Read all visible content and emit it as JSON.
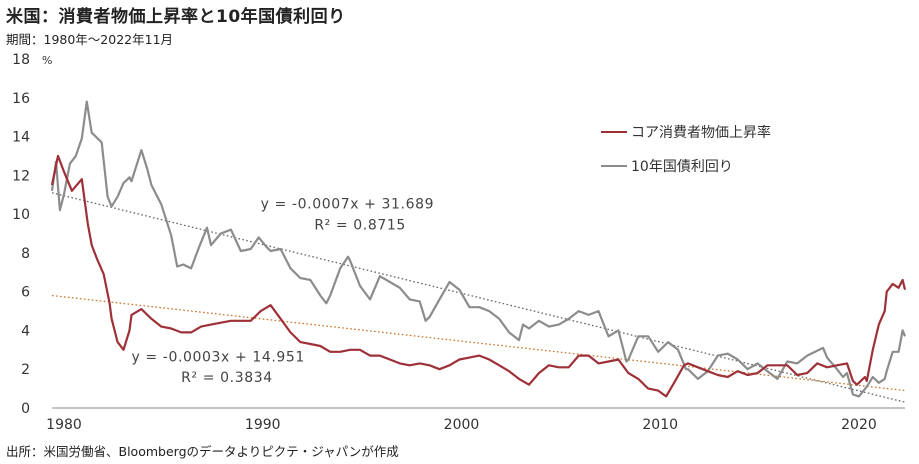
{
  "title": "米国：消費者物価上昇率と10年国債利回り",
  "period_label": "期間：1980年～2022年11月",
  "source_label": "出所：米国労働省、Bloombergのデータよりピクテ・ジャパンが作成",
  "colors": {
    "cpi": "#9e3038",
    "yield": "#8c8c8c",
    "trend_yield": "#666666",
    "trend_cpi": "#c9762a"
  },
  "chart_data": {
    "type": "line",
    "title": "米国：消費者物価上昇率と10年国債利回り",
    "xlabel": "",
    "ylabel": "%",
    "xlim": [
      1980,
      2022.92
    ],
    "ylim": [
      0,
      18
    ],
    "x_ticks": [
      1980,
      1990,
      2000,
      2010,
      2020
    ],
    "y_ticks": [
      0,
      2,
      4,
      6,
      8,
      10,
      12,
      14,
      16,
      18
    ],
    "grid": false,
    "legend": "right",
    "series": [
      {
        "name": "コア消費者物価上昇率",
        "color": "#9e3038",
        "points": [
          [
            1980,
            11.5
          ],
          [
            1980.3,
            13.0
          ],
          [
            1980.6,
            12.2
          ],
          [
            1981,
            11.2
          ],
          [
            1981.5,
            11.8
          ],
          [
            1981.8,
            9.5
          ],
          [
            1982,
            8.4
          ],
          [
            1982.3,
            7.6
          ],
          [
            1982.6,
            6.9
          ],
          [
            1982.9,
            5.4
          ],
          [
            1983,
            4.6
          ],
          [
            1983.3,
            3.4
          ],
          [
            1983.6,
            3.0
          ],
          [
            1983.9,
            4.0
          ],
          [
            1984,
            4.8
          ],
          [
            1984.5,
            5.1
          ],
          [
            1985,
            4.6
          ],
          [
            1985.5,
            4.2
          ],
          [
            1986,
            4.1
          ],
          [
            1986.5,
            3.9
          ],
          [
            1987,
            3.9
          ],
          [
            1987.5,
            4.2
          ],
          [
            1988,
            4.3
          ],
          [
            1988.5,
            4.4
          ],
          [
            1989,
            4.5
          ],
          [
            1989.5,
            4.5
          ],
          [
            1990,
            4.5
          ],
          [
            1990.5,
            5.0
          ],
          [
            1991,
            5.3
          ],
          [
            1991.5,
            4.6
          ],
          [
            1992,
            3.9
          ],
          [
            1992.5,
            3.4
          ],
          [
            1993,
            3.3
          ],
          [
            1993.5,
            3.2
          ],
          [
            1994,
            2.9
          ],
          [
            1994.5,
            2.9
          ],
          [
            1995,
            3.0
          ],
          [
            1995.5,
            3.0
          ],
          [
            1996,
            2.7
          ],
          [
            1996.5,
            2.7
          ],
          [
            1997,
            2.5
          ],
          [
            1997.5,
            2.3
          ],
          [
            1998,
            2.2
          ],
          [
            1998.5,
            2.3
          ],
          [
            1999,
            2.2
          ],
          [
            1999.5,
            2.0
          ],
          [
            2000,
            2.2
          ],
          [
            2000.5,
            2.5
          ],
          [
            2001,
            2.6
          ],
          [
            2001.5,
            2.7
          ],
          [
            2002,
            2.5
          ],
          [
            2002.5,
            2.2
          ],
          [
            2003,
            1.9
          ],
          [
            2003.5,
            1.5
          ],
          [
            2004,
            1.2
          ],
          [
            2004.5,
            1.8
          ],
          [
            2005,
            2.2
          ],
          [
            2005.5,
            2.1
          ],
          [
            2006,
            2.1
          ],
          [
            2006.5,
            2.7
          ],
          [
            2007,
            2.7
          ],
          [
            2007.5,
            2.3
          ],
          [
            2008,
            2.4
          ],
          [
            2008.5,
            2.5
          ],
          [
            2009,
            1.8
          ],
          [
            2009.5,
            1.5
          ],
          [
            2010,
            1.0
          ],
          [
            2010.5,
            0.9
          ],
          [
            2010.9,
            0.6
          ],
          [
            2011.3,
            1.3
          ],
          [
            2011.8,
            2.2
          ],
          [
            2012,
            2.3
          ],
          [
            2012.5,
            2.1
          ],
          [
            2013,
            1.9
          ],
          [
            2013.5,
            1.7
          ],
          [
            2014,
            1.6
          ],
          [
            2014.5,
            1.9
          ],
          [
            2015,
            1.7
          ],
          [
            2015.5,
            1.8
          ],
          [
            2016,
            2.2
          ],
          [
            2016.5,
            2.2
          ],
          [
            2017,
            2.2
          ],
          [
            2017.5,
            1.7
          ],
          [
            2018,
            1.8
          ],
          [
            2018.5,
            2.3
          ],
          [
            2019,
            2.1
          ],
          [
            2019.5,
            2.2
          ],
          [
            2020,
            2.3
          ],
          [
            2020.3,
            1.4
          ],
          [
            2020.5,
            1.2
          ],
          [
            2020.9,
            1.6
          ],
          [
            2021,
            1.4
          ],
          [
            2021.3,
            3.0
          ],
          [
            2021.6,
            4.3
          ],
          [
            2021.9,
            5.0
          ],
          [
            2022,
            6.0
          ],
          [
            2022.3,
            6.4
          ],
          [
            2022.6,
            6.2
          ],
          [
            2022.8,
            6.6
          ],
          [
            2022.92,
            6.1
          ]
        ]
      },
      {
        "name": "10年国債利回り",
        "color": "#8c8c8c",
        "points": [
          [
            1980,
            11.2
          ],
          [
            1980.2,
            12.7
          ],
          [
            1980.4,
            10.2
          ],
          [
            1980.6,
            11.0
          ],
          [
            1980.9,
            12.6
          ],
          [
            1981.2,
            13.0
          ],
          [
            1981.5,
            13.9
          ],
          [
            1981.75,
            15.8
          ],
          [
            1982,
            14.2
          ],
          [
            1982.5,
            13.7
          ],
          [
            1982.8,
            10.9
          ],
          [
            1983,
            10.4
          ],
          [
            1983.3,
            10.9
          ],
          [
            1983.6,
            11.6
          ],
          [
            1983.9,
            11.9
          ],
          [
            1984,
            11.7
          ],
          [
            1984.5,
            13.3
          ],
          [
            1984.8,
            12.3
          ],
          [
            1985,
            11.5
          ],
          [
            1985.5,
            10.5
          ],
          [
            1986,
            8.9
          ],
          [
            1986.3,
            7.3
          ],
          [
            1986.6,
            7.4
          ],
          [
            1987,
            7.2
          ],
          [
            1987.4,
            8.3
          ],
          [
            1987.8,
            9.3
          ],
          [
            1988,
            8.4
          ],
          [
            1988.5,
            9.0
          ],
          [
            1989,
            9.2
          ],
          [
            1989.5,
            8.1
          ],
          [
            1990,
            8.2
          ],
          [
            1990.4,
            8.8
          ],
          [
            1990.8,
            8.3
          ],
          [
            1991,
            8.1
          ],
          [
            1991.5,
            8.2
          ],
          [
            1992,
            7.2
          ],
          [
            1992.5,
            6.7
          ],
          [
            1993,
            6.6
          ],
          [
            1993.5,
            5.8
          ],
          [
            1993.8,
            5.4
          ],
          [
            1994,
            5.8
          ],
          [
            1994.5,
            7.2
          ],
          [
            1994.9,
            7.8
          ],
          [
            1995,
            7.6
          ],
          [
            1995.5,
            6.3
          ],
          [
            1996,
            5.6
          ],
          [
            1996.5,
            6.8
          ],
          [
            1997,
            6.5
          ],
          [
            1997.5,
            6.2
          ],
          [
            1998,
            5.6
          ],
          [
            1998.5,
            5.5
          ],
          [
            1998.8,
            4.5
          ],
          [
            1999,
            4.7
          ],
          [
            1999.5,
            5.6
          ],
          [
            2000,
            6.5
          ],
          [
            2000.5,
            6.1
          ],
          [
            2001,
            5.2
          ],
          [
            2001.5,
            5.2
          ],
          [
            2002,
            5.0
          ],
          [
            2002.5,
            4.6
          ],
          [
            2003,
            3.9
          ],
          [
            2003.5,
            3.5
          ],
          [
            2003.7,
            4.3
          ],
          [
            2004,
            4.1
          ],
          [
            2004.5,
            4.5
          ],
          [
            2005,
            4.2
          ],
          [
            2005.5,
            4.3
          ],
          [
            2006,
            4.6
          ],
          [
            2006.5,
            5.0
          ],
          [
            2007,
            4.8
          ],
          [
            2007.5,
            5.0
          ],
          [
            2008,
            3.7
          ],
          [
            2008.5,
            4.0
          ],
          [
            2008.9,
            2.4
          ],
          [
            2009,
            2.5
          ],
          [
            2009.5,
            3.7
          ],
          [
            2010,
            3.7
          ],
          [
            2010.5,
            2.9
          ],
          [
            2011,
            3.4
          ],
          [
            2011.5,
            3.0
          ],
          [
            2011.9,
            2.0
          ],
          [
            2012,
            2.0
          ],
          [
            2012.5,
            1.5
          ],
          [
            2013,
            1.9
          ],
          [
            2013.5,
            2.7
          ],
          [
            2014,
            2.8
          ],
          [
            2014.5,
            2.5
          ],
          [
            2015,
            2.0
          ],
          [
            2015.5,
            2.3
          ],
          [
            2016,
            1.9
          ],
          [
            2016.5,
            1.5
          ],
          [
            2017,
            2.4
          ],
          [
            2017.5,
            2.3
          ],
          [
            2018,
            2.7
          ],
          [
            2018.8,
            3.1
          ],
          [
            2019,
            2.6
          ],
          [
            2019.5,
            2.0
          ],
          [
            2019.8,
            1.6
          ],
          [
            2020,
            1.8
          ],
          [
            2020.3,
            0.7
          ],
          [
            2020.6,
            0.6
          ],
          [
            2021,
            1.1
          ],
          [
            2021.3,
            1.6
          ],
          [
            2021.6,
            1.3
          ],
          [
            2021.9,
            1.5
          ],
          [
            2022,
            1.9
          ],
          [
            2022.3,
            2.9
          ],
          [
            2022.6,
            2.9
          ],
          [
            2022.8,
            4.0
          ],
          [
            2022.92,
            3.7
          ]
        ]
      }
    ],
    "trendlines": [
      {
        "series": "10年国債利回り",
        "slope": -0.0007,
        "intercept": 31.689,
        "from": 1980,
        "to": 2022.92,
        "color": "#666666"
      },
      {
        "series": "コア消費者物価上昇率",
        "slope": -0.0003,
        "intercept": 14.951,
        "from": 1980,
        "to": 2022.92,
        "color": "#c9762a"
      }
    ],
    "trend_endpoints": {
      "yield": [
        [
          1980,
          11.1
        ],
        [
          2022.92,
          0.3
        ]
      ],
      "cpi": [
        [
          1980,
          5.8
        ],
        [
          2022.92,
          0.9
        ]
      ]
    },
    "annotations": [
      {
        "id": "yield-eq",
        "text": "y = -0.0007x + 31.689",
        "at": [
          1990.5,
          10.3
        ]
      },
      {
        "id": "yield-r2",
        "text": "R² = 0.8715",
        "at": [
          1993.2,
          9.2
        ]
      },
      {
        "id": "cpi-eq",
        "text": "y = -0.0003x + 14.951",
        "at": [
          1984,
          2.4
        ]
      },
      {
        "id": "cpi-r2",
        "text": "R² = 0.3834",
        "at": [
          1986.5,
          1.35
        ]
      }
    ]
  }
}
